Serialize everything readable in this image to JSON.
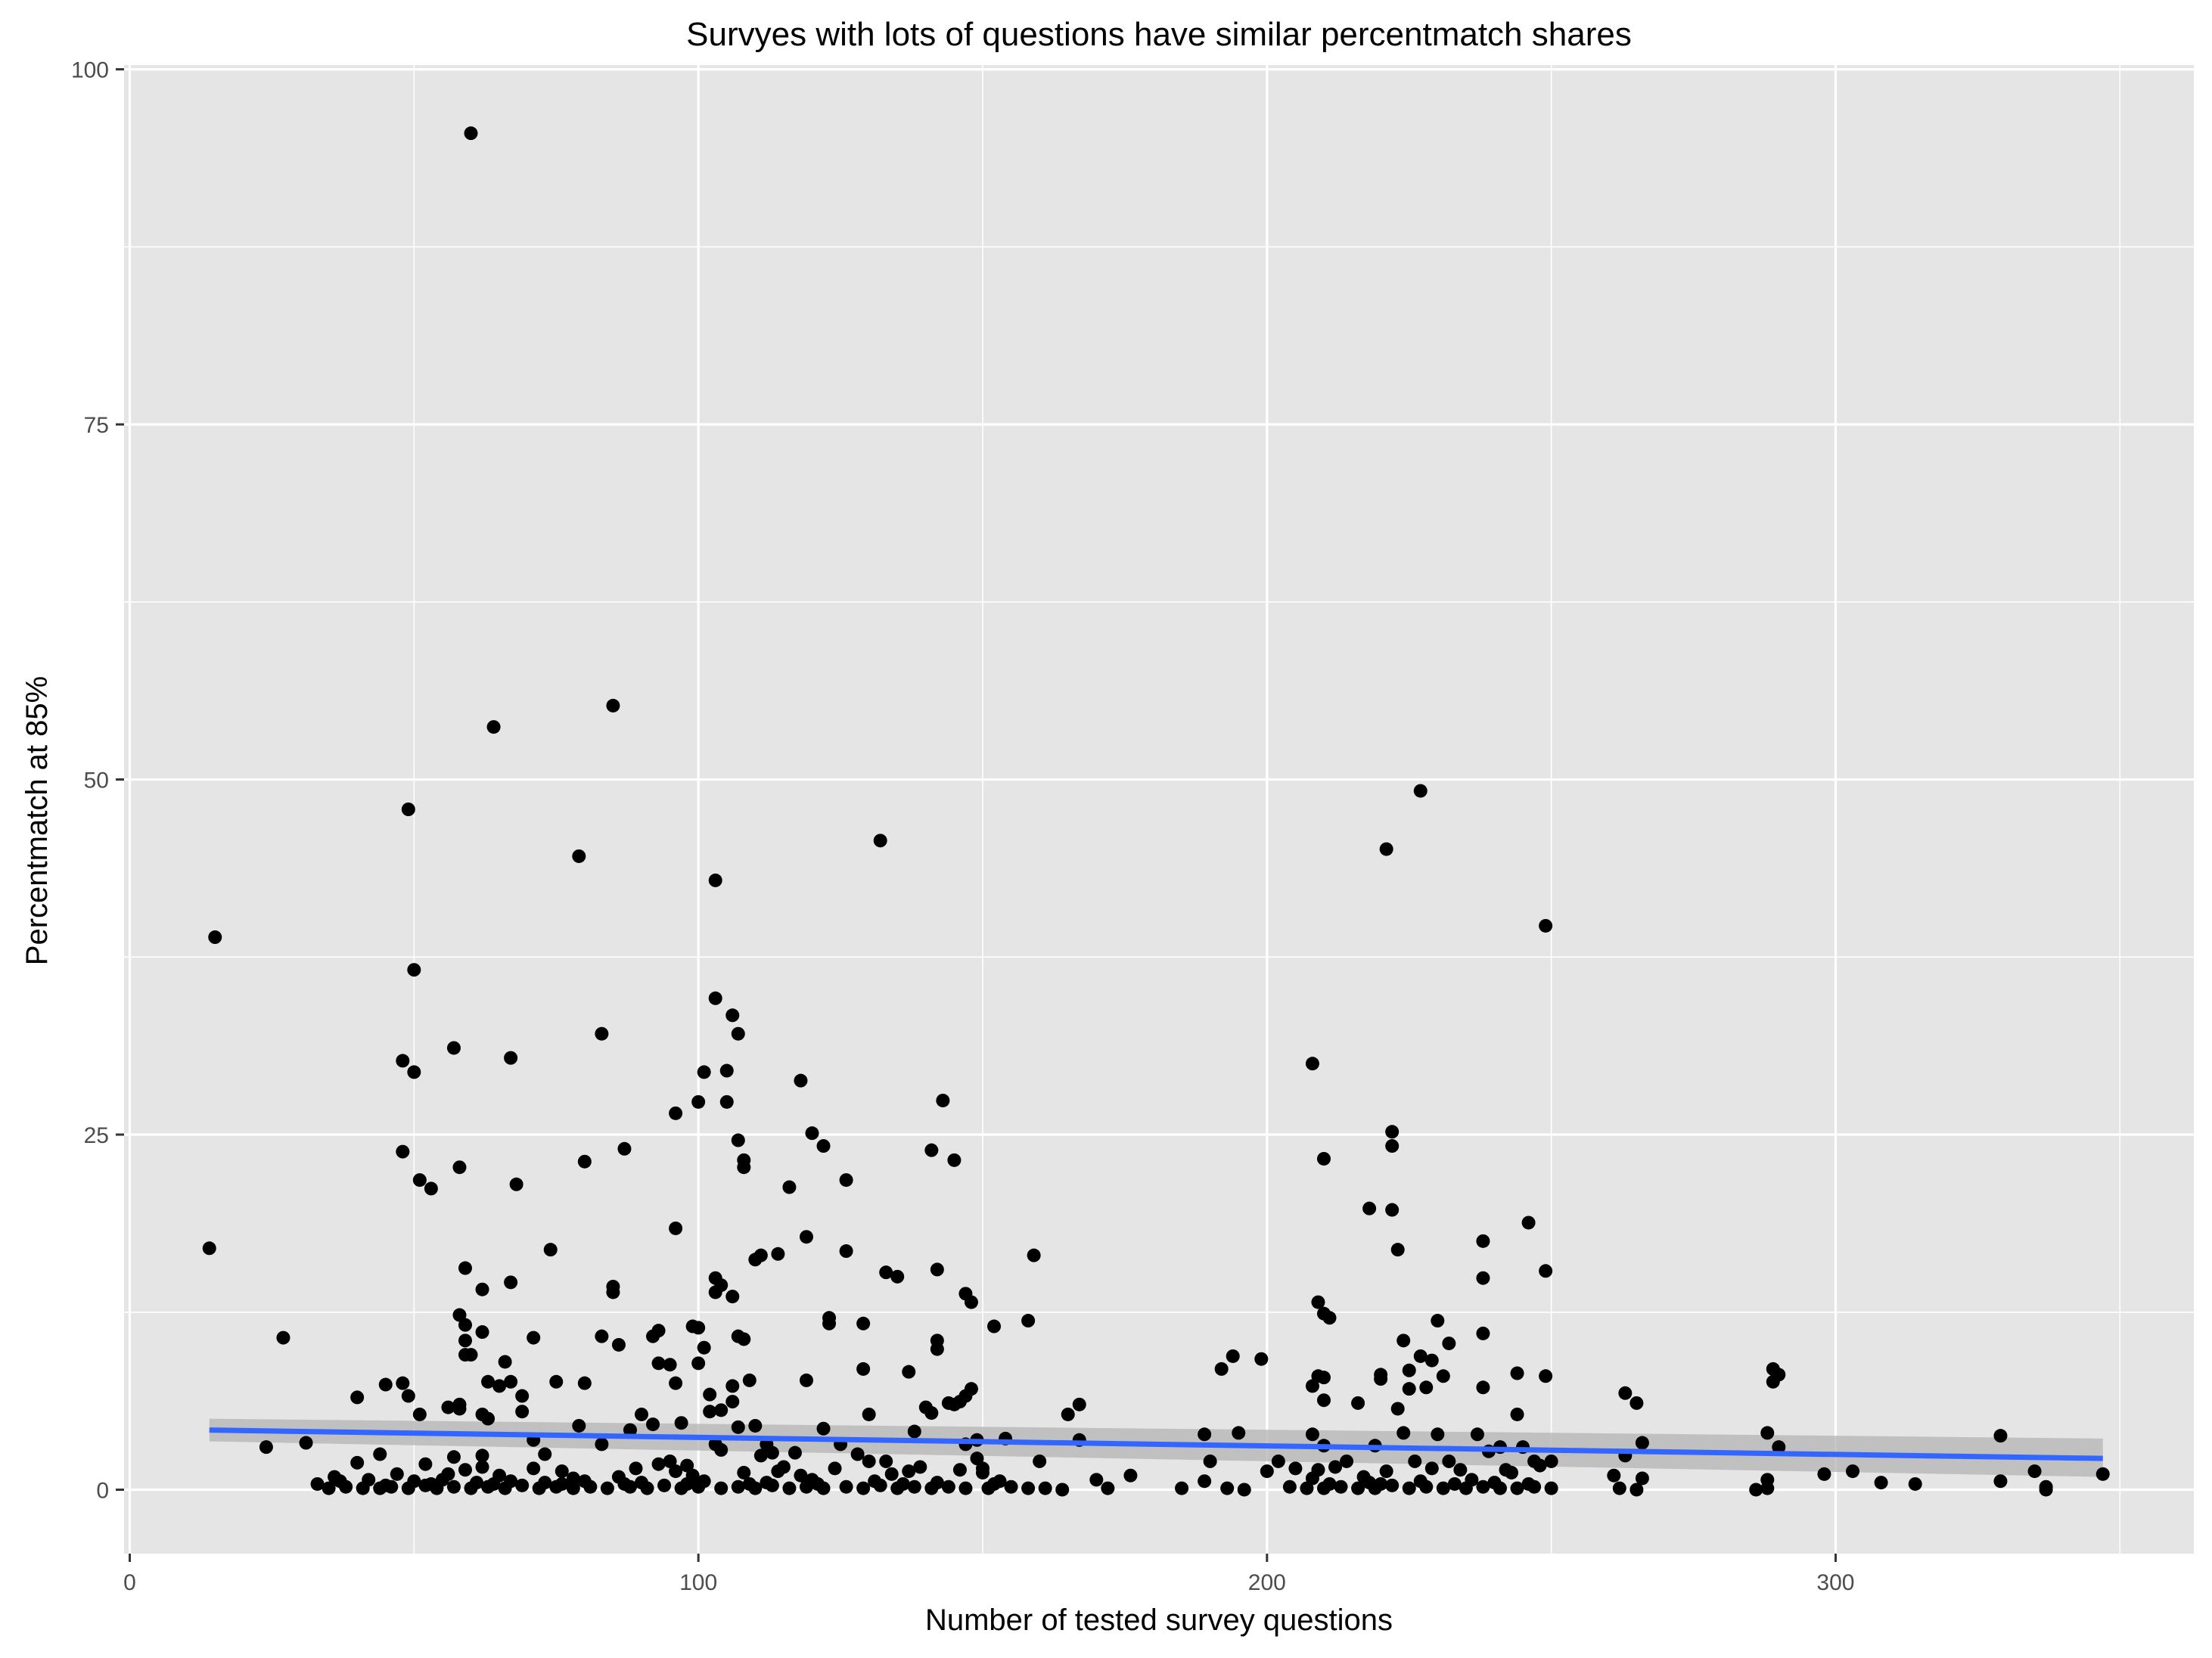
{
  "chart_data": {
    "type": "scatter",
    "title": "Survyes with lots of questions have similar percentmatch shares",
    "xlabel": "Number of tested survey questions",
    "ylabel": "Percentmatch at 85%",
    "xlim": [
      -1,
      363
    ],
    "ylim": [
      -4.5,
      100.3
    ],
    "xticks": [
      0,
      100,
      200,
      300
    ],
    "xtick_labels": [
      "0",
      "100",
      "200",
      "300"
    ],
    "yticks": [
      0,
      25,
      50,
      75,
      100
    ],
    "ytick_labels": [
      "0",
      "25",
      "50",
      "75",
      "100"
    ],
    "grid": true,
    "panel_background": "#e5e5e5",
    "grid_color": "#ffffff",
    "point_color": "#000000",
    "trend_color": "#3366ff",
    "band_color": "#b3b3b3",
    "legend": "none",
    "trend": {
      "method": "linear fit with confidence band",
      "x": [
        14,
        347
      ],
      "y": [
        4.2,
        2.2
      ],
      "band_low": [
        3.4,
        0.9
      ],
      "band_high": [
        5.0,
        3.6
      ]
    },
    "points": [
      [
        60,
        95.5
      ],
      [
        85,
        55.2
      ],
      [
        64,
        53.7
      ],
      [
        227,
        49.2
      ],
      [
        49,
        47.9
      ],
      [
        221,
        45.1
      ],
      [
        132,
        45.7
      ],
      [
        79,
        44.6
      ],
      [
        103,
        42.9
      ],
      [
        249,
        39.7
      ],
      [
        15,
        38.9
      ],
      [
        50,
        36.6
      ],
      [
        103,
        34.6
      ],
      [
        106,
        33.4
      ],
      [
        107,
        32.1
      ],
      [
        83,
        32.1
      ],
      [
        57,
        31.1
      ],
      [
        48,
        30.2
      ],
      [
        67,
        30.4
      ],
      [
        208,
        30.0
      ],
      [
        50,
        29.4
      ],
      [
        101,
        29.4
      ],
      [
        105,
        29.5
      ],
      [
        118,
        28.8
      ],
      [
        100,
        27.3
      ],
      [
        105,
        27.3
      ],
      [
        143,
        27.4
      ],
      [
        96,
        26.5
      ],
      [
        120,
        25.1
      ],
      [
        222,
        25.2
      ],
      [
        107,
        24.6
      ],
      [
        122,
        24.2
      ],
      [
        222,
        24.2
      ],
      [
        141,
        23.9
      ],
      [
        48,
        23.8
      ],
      [
        87,
        24.0
      ],
      [
        80,
        23.1
      ],
      [
        108,
        23.2
      ],
      [
        108,
        22.7
      ],
      [
        145,
        23.2
      ],
      [
        210,
        23.3
      ],
      [
        58,
        22.7
      ],
      [
        51,
        21.8
      ],
      [
        53,
        21.2
      ],
      [
        68,
        21.5
      ],
      [
        116,
        21.3
      ],
      [
        126,
        21.8
      ],
      [
        218,
        19.8
      ],
      [
        222,
        19.7
      ],
      [
        246,
        18.8
      ],
      [
        96,
        18.4
      ],
      [
        119,
        17.8
      ],
      [
        14,
        17.0
      ],
      [
        238,
        17.5
      ],
      [
        74,
        16.9
      ],
      [
        126,
        16.8
      ],
      [
        223,
        16.9
      ],
      [
        111,
        16.5
      ],
      [
        110,
        16.2
      ],
      [
        114,
        16.6
      ],
      [
        159,
        16.5
      ],
      [
        59,
        15.6
      ],
      [
        133,
        15.3
      ],
      [
        135,
        15.0
      ],
      [
        142,
        15.5
      ],
      [
        249,
        15.4
      ],
      [
        238,
        14.9
      ],
      [
        103,
        14.9
      ],
      [
        104,
        14.4
      ],
      [
        103,
        13.9
      ],
      [
        106,
        13.6
      ],
      [
        62,
        14.1
      ],
      [
        67,
        14.6
      ],
      [
        85,
        14.3
      ],
      [
        85,
        13.9
      ],
      [
        147,
        13.8
      ],
      [
        148,
        13.2
      ],
      [
        209,
        13.2
      ],
      [
        210,
        12.4
      ],
      [
        211,
        12.1
      ],
      [
        58,
        12.3
      ],
      [
        59,
        11.6
      ],
      [
        123,
        12.1
      ],
      [
        123,
        11.7
      ],
      [
        129,
        11.7
      ],
      [
        158,
        11.9
      ],
      [
        230,
        11.9
      ],
      [
        62,
        11.1
      ],
      [
        99,
        11.5
      ],
      [
        100,
        11.4
      ],
      [
        152,
        11.5
      ],
      [
        238,
        11.0
      ],
      [
        27,
        10.7
      ],
      [
        71,
        10.7
      ],
      [
        83,
        10.8
      ],
      [
        92,
        10.8
      ],
      [
        93,
        11.2
      ],
      [
        59,
        10.5
      ],
      [
        107,
        10.8
      ],
      [
        108,
        10.6
      ],
      [
        142,
        10.5
      ],
      [
        224,
        10.5
      ],
      [
        232,
        10.3
      ],
      [
        59,
        9.5
      ],
      [
        60,
        9.5
      ],
      [
        86,
        10.2
      ],
      [
        101,
        10.0
      ],
      [
        142,
        9.9
      ],
      [
        194,
        9.4
      ],
      [
        199,
        9.2
      ],
      [
        227,
        9.4
      ],
      [
        229,
        9.1
      ],
      [
        66,
        9.0
      ],
      [
        93,
        8.9
      ],
      [
        95,
        8.8
      ],
      [
        100,
        8.9
      ],
      [
        129,
        8.5
      ],
      [
        137,
        8.3
      ],
      [
        192,
        8.5
      ],
      [
        209,
        8.0
      ],
      [
        210,
        7.9
      ],
      [
        220,
        7.8
      ],
      [
        220,
        8.1
      ],
      [
        225,
        8.4
      ],
      [
        231,
        8.0
      ],
      [
        244,
        8.2
      ],
      [
        249,
        8.0
      ],
      [
        289,
        8.5
      ],
      [
        290,
        8.1
      ],
      [
        289,
        7.6
      ],
      [
        63,
        7.6
      ],
      [
        67,
        7.6
      ],
      [
        75,
        7.6
      ],
      [
        80,
        7.5
      ],
      [
        96,
        7.5
      ],
      [
        106,
        7.3
      ],
      [
        109,
        7.7
      ],
      [
        119,
        7.7
      ],
      [
        208,
        7.3
      ],
      [
        225,
        7.1
      ],
      [
        228,
        7.2
      ],
      [
        238,
        7.2
      ],
      [
        45,
        7.4
      ],
      [
        48,
        7.5
      ],
      [
        102,
        6.7
      ],
      [
        148,
        7.1
      ],
      [
        65,
        7.3
      ],
      [
        69,
        6.6
      ],
      [
        40,
        6.5
      ],
      [
        49,
        6.6
      ],
      [
        106,
        6.2
      ],
      [
        144,
        6.1
      ],
      [
        146,
        6.2
      ],
      [
        147,
        6.6
      ],
      [
        167,
        6.0
      ],
      [
        210,
        6.3
      ],
      [
        216,
        6.1
      ],
      [
        263,
        6.8
      ],
      [
        265,
        6.1
      ],
      [
        51,
        5.3
      ],
      [
        56,
        5.8
      ],
      [
        58,
        6.0
      ],
      [
        58,
        5.7
      ],
      [
        62,
        5.3
      ],
      [
        63,
        5.0
      ],
      [
        69,
        5.5
      ],
      [
        90,
        5.3
      ],
      [
        102,
        5.5
      ],
      [
        104,
        5.6
      ],
      [
        130,
        5.3
      ],
      [
        140,
        5.8
      ],
      [
        141,
        5.4
      ],
      [
        145,
        6.0
      ],
      [
        165,
        5.3
      ],
      [
        223,
        5.7
      ],
      [
        244,
        5.3
      ],
      [
        79,
        4.5
      ],
      [
        88,
        4.2
      ],
      [
        92,
        4.6
      ],
      [
        97,
        4.7
      ],
      [
        107,
        4.4
      ],
      [
        110,
        4.5
      ],
      [
        122,
        4.3
      ],
      [
        138,
        4.1
      ],
      [
        149,
        3.5
      ],
      [
        154,
        3.6
      ],
      [
        189,
        3.9
      ],
      [
        195,
        4.0
      ],
      [
        208,
        3.9
      ],
      [
        224,
        4.0
      ],
      [
        230,
        3.9
      ],
      [
        237,
        3.9
      ],
      [
        239,
        2.7
      ],
      [
        288,
        4.0
      ],
      [
        329,
        3.8
      ],
      [
        24,
        3.0
      ],
      [
        31,
        3.3
      ],
      [
        71,
        3.5
      ],
      [
        83,
        3.2
      ],
      [
        103,
        3.2
      ],
      [
        112,
        3.2
      ],
      [
        125,
        3.2
      ],
      [
        147,
        3.2
      ],
      [
        167,
        3.5
      ],
      [
        210,
        3.1
      ],
      [
        219,
        3.1
      ],
      [
        241,
        3.0
      ],
      [
        245,
        3.0
      ],
      [
        266,
        3.3
      ],
      [
        290,
        3.0
      ],
      [
        104,
        2.8
      ],
      [
        113,
        2.6
      ],
      [
        117,
        2.6
      ],
      [
        128,
        2.5
      ],
      [
        130,
        2.0
      ],
      [
        133,
        2.0
      ],
      [
        149,
        2.2
      ],
      [
        160,
        2.0
      ],
      [
        190,
        2.0
      ],
      [
        202,
        2.0
      ],
      [
        214,
        2.0
      ],
      [
        226,
        2.0
      ],
      [
        232,
        2.0
      ],
      [
        247,
        2.0
      ],
      [
        250,
        2.0
      ],
      [
        263,
        2.4
      ],
      [
        44,
        2.5
      ],
      [
        57,
        2.3
      ],
      [
        62,
        2.4
      ],
      [
        73,
        2.5
      ],
      [
        95,
        2.0
      ],
      [
        111,
        2.4
      ],
      [
        40,
        1.9
      ],
      [
        52,
        1.8
      ],
      [
        93,
        1.8
      ],
      [
        98,
        1.7
      ],
      [
        115,
        1.6
      ],
      [
        139,
        1.6
      ],
      [
        150,
        1.5
      ],
      [
        176,
        1.0
      ],
      [
        200,
        1.3
      ],
      [
        205,
        1.5
      ],
      [
        212,
        1.6
      ],
      [
        234,
        1.4
      ],
      [
        248,
        1.7
      ],
      [
        298,
        1.1
      ],
      [
        303,
        1.3
      ],
      [
        335,
        1.3
      ],
      [
        347,
        1.1
      ],
      [
        36,
        0.9
      ],
      [
        47,
        1.1
      ],
      [
        56,
        1.1
      ],
      [
        65,
        1.0
      ],
      [
        78,
        0.8
      ],
      [
        86,
        0.9
      ],
      [
        99,
        1.0
      ],
      [
        108,
        1.2
      ],
      [
        118,
        1.0
      ],
      [
        134,
        1.1
      ],
      [
        150,
        1.2
      ],
      [
        170,
        0.7
      ],
      [
        189,
        0.6
      ],
      [
        208,
        0.8
      ],
      [
        217,
        0.9
      ],
      [
        236,
        0.7
      ],
      [
        243,
        1.2
      ],
      [
        261,
        1.0
      ],
      [
        266,
        0.8
      ],
      [
        288,
        0.7
      ],
      [
        308,
        0.5
      ],
      [
        314,
        0.4
      ],
      [
        329,
        0.6
      ],
      [
        337,
        0.2
      ],
      [
        33,
        0.4
      ],
      [
        35,
        0.1
      ],
      [
        38,
        0.2
      ],
      [
        41,
        0.1
      ],
      [
        44,
        0.1
      ],
      [
        46,
        0.2
      ],
      [
        49,
        0.1
      ],
      [
        52,
        0.3
      ],
      [
        54,
        0.1
      ],
      [
        57,
        0.2
      ],
      [
        60,
        0.1
      ],
      [
        63,
        0.2
      ],
      [
        66,
        0.1
      ],
      [
        69,
        0.3
      ],
      [
        72,
        0.1
      ],
      [
        75,
        0.2
      ],
      [
        78,
        0.1
      ],
      [
        81,
        0.2
      ],
      [
        84,
        0.1
      ],
      [
        88,
        0.2
      ],
      [
        91,
        0.1
      ],
      [
        94,
        0.3
      ],
      [
        97,
        0.1
      ],
      [
        100,
        0.2
      ],
      [
        104,
        0.1
      ],
      [
        107,
        0.2
      ],
      [
        110,
        0.1
      ],
      [
        113,
        0.3
      ],
      [
        116,
        0.1
      ],
      [
        119,
        0.2
      ],
      [
        122,
        0.1
      ],
      [
        126,
        0.2
      ],
      [
        129,
        0.1
      ],
      [
        132,
        0.3
      ],
      [
        135,
        0.1
      ],
      [
        138,
        0.2
      ],
      [
        141,
        0.1
      ],
      [
        144,
        0.2
      ],
      [
        147,
        0.1
      ],
      [
        151,
        0.1
      ],
      [
        155,
        0.2
      ],
      [
        158,
        0.1
      ],
      [
        161,
        0.1
      ],
      [
        164,
        0.0
      ],
      [
        172,
        0.1
      ],
      [
        185,
        0.1
      ],
      [
        193,
        0.1
      ],
      [
        196,
        0.0
      ],
      [
        204,
        0.2
      ],
      [
        207,
        0.1
      ],
      [
        210,
        0.1
      ],
      [
        213,
        0.2
      ],
      [
        216,
        0.1
      ],
      [
        219,
        0.1
      ],
      [
        222,
        0.3
      ],
      [
        225,
        0.1
      ],
      [
        228,
        0.2
      ],
      [
        231,
        0.1
      ],
      [
        235,
        0.1
      ],
      [
        238,
        0.2
      ],
      [
        241,
        0.1
      ],
      [
        244,
        0.1
      ],
      [
        247,
        0.2
      ],
      [
        250,
        0.1
      ],
      [
        262,
        0.1
      ],
      [
        265,
        0.0
      ],
      [
        286,
        0.0
      ],
      [
        288,
        0.1
      ],
      [
        337,
        0.0
      ],
      [
        37,
        0.6
      ],
      [
        42,
        0.7
      ],
      [
        50,
        0.6
      ],
      [
        55,
        0.7
      ],
      [
        61,
        0.5
      ],
      [
        67,
        0.6
      ],
      [
        73,
        0.5
      ],
      [
        80,
        0.6
      ],
      [
        90,
        0.5
      ],
      [
        101,
        0.6
      ],
      [
        112,
        0.5
      ],
      [
        120,
        0.7
      ],
      [
        131,
        0.6
      ],
      [
        142,
        0.5
      ],
      [
        153,
        0.6
      ],
      [
        218,
        0.5
      ],
      [
        227,
        0.6
      ],
      [
        240,
        0.5
      ],
      [
        45,
        0.3
      ],
      [
        59,
        1.4
      ],
      [
        62,
        1.6
      ],
      [
        71,
        1.5
      ],
      [
        76,
        1.3
      ],
      [
        89,
        1.5
      ],
      [
        96,
        1.3
      ],
      [
        114,
        1.3
      ],
      [
        124,
        1.5
      ],
      [
        137,
        1.3
      ],
      [
        146,
        1.4
      ],
      [
        209,
        1.4
      ],
      [
        221,
        1.3
      ],
      [
        229,
        1.5
      ],
      [
        242,
        1.4
      ],
      [
        53,
        0.4
      ],
      [
        64,
        0.4
      ],
      [
        76,
        0.4
      ],
      [
        87,
        0.4
      ],
      [
        98,
        0.4
      ],
      [
        109,
        0.4
      ],
      [
        121,
        0.4
      ],
      [
        136,
        0.4
      ],
      [
        152,
        0.4
      ],
      [
        211,
        0.4
      ],
      [
        220,
        0.4
      ],
      [
        233,
        0.4
      ],
      [
        246,
        0.4
      ]
    ]
  }
}
